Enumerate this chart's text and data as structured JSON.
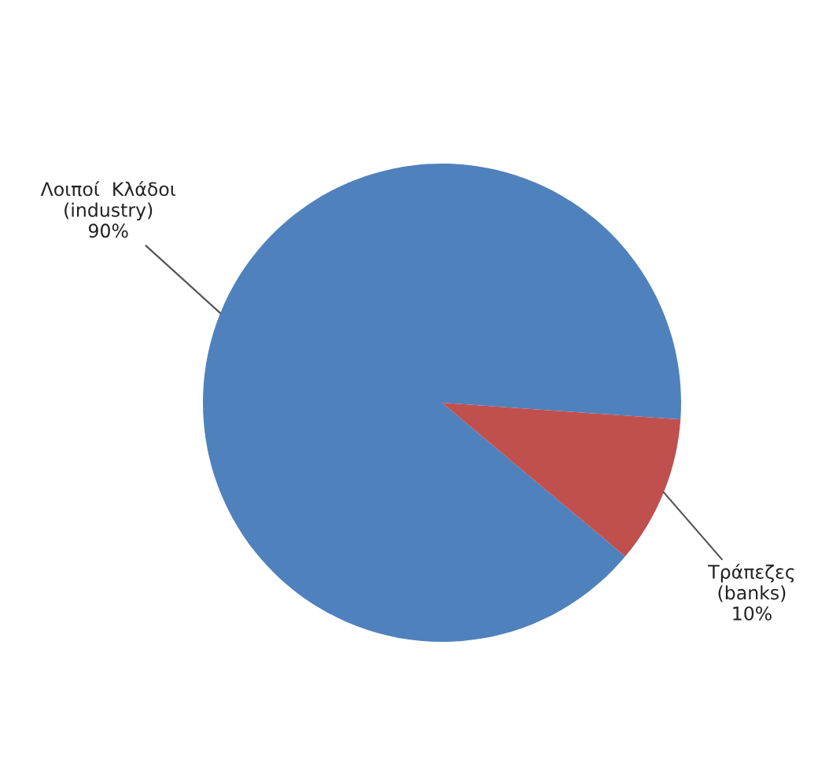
{
  "chart_data": {
    "type": "pie",
    "categories": [
      "Λοιποί  Κλάδοι\n(industry)",
      "Τράπεζες\n(banks)"
    ],
    "values": [
      90,
      10
    ],
    "colors": [
      "#4f81bd",
      "#c0504d"
    ],
    "value_labels": [
      "90%",
      "10%"
    ],
    "legend": false
  }
}
